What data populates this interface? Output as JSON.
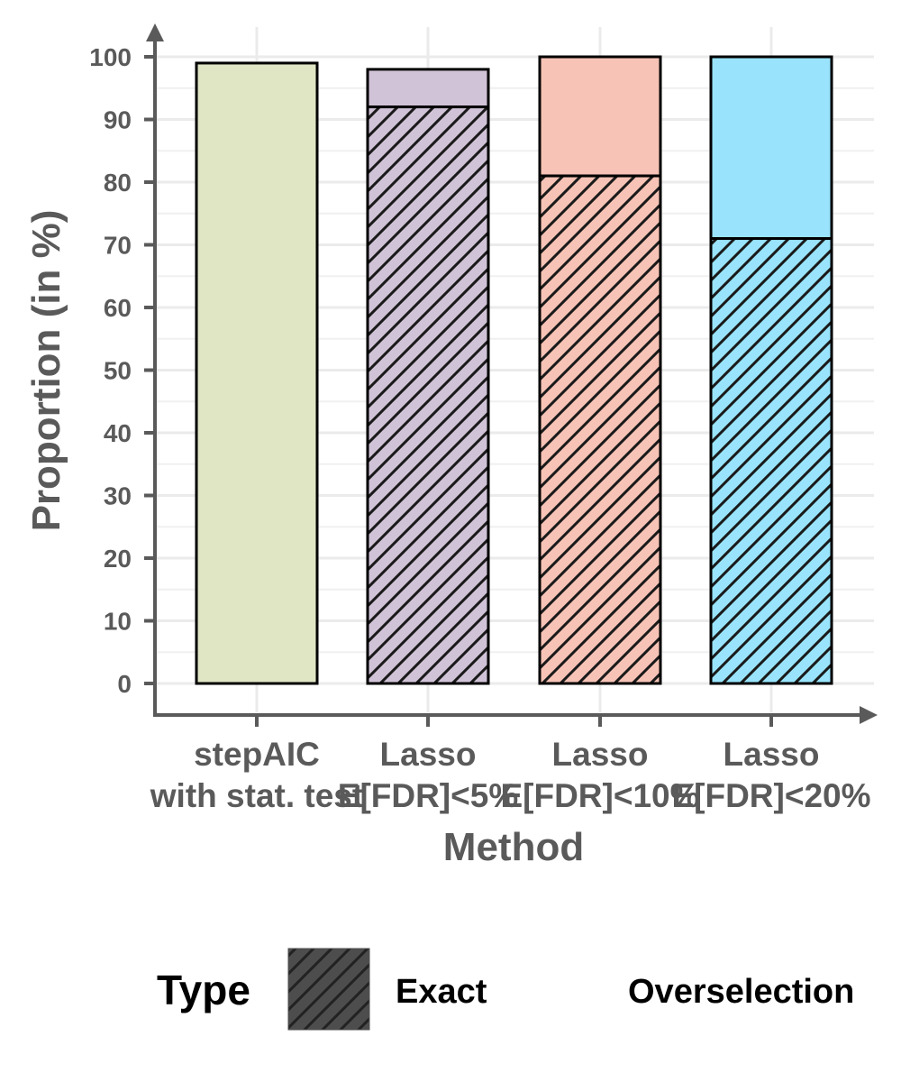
{
  "chart_data": {
    "type": "bar",
    "stacked": true,
    "categories": [
      [
        "stepAIC",
        "with stat. test"
      ],
      [
        "Lasso",
        "E[FDR]<5%"
      ],
      [
        "Lasso",
        "E[FDR]<10%"
      ],
      [
        "Lasso",
        "E[FDR]<20%"
      ]
    ],
    "series": [
      {
        "name": "Exact",
        "values": [
          0,
          92,
          81,
          71
        ],
        "pattern": "hatched"
      },
      {
        "name": "Overselection",
        "values": [
          99,
          6,
          19,
          29
        ],
        "pattern": "solid"
      }
    ],
    "bar_colors": [
      "#e0e5c4",
      "#d1c3d7",
      "#f7c3b6",
      "#99e4fc"
    ],
    "xlabel": "Method",
    "ylabel": "Proportion (in %)",
    "ylim": [
      0,
      100
    ],
    "yticks": [
      0,
      10,
      20,
      30,
      40,
      50,
      60,
      70,
      80,
      90,
      100
    ],
    "grid": true,
    "legend": {
      "title": "Type",
      "position": "bottom",
      "items": [
        "Exact",
        "Overselection"
      ],
      "swatch_color": "#4d4d4d"
    }
  }
}
